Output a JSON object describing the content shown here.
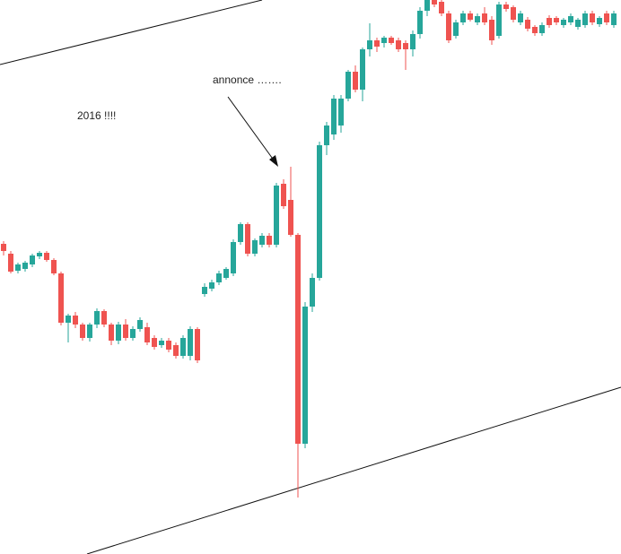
{
  "chart_data": {
    "type": "candlestick",
    "annotations": [
      "2016 !!!!",
      "annonce ……."
    ],
    "up_color": "#26a69a",
    "down_color": "#ef5350",
    "ylim": [
      0,
      618
    ],
    "open": [
      346,
      335,
      316,
      318,
      323,
      332,
      336,
      328,
      313,
      258,
      266,
      256,
      241,
      256,
      271,
      256,
      238,
      256,
      241,
      251,
      253,
      241,
      233,
      238,
      233,
      221,
      221,
      251,
      290,
      296,
      303,
      308,
      313,
      348,
      368,
      335,
      345,
      355,
      345,
      413,
      395,
      356,
      123,
      276,
      308,
      456,
      468,
      478,
      508,
      538,
      518,
      563,
      573,
      570,
      576,
      573,
      570,
      563,
      580,
      606,
      618,
      616,
      603,
      578,
      593,
      603,
      593,
      603,
      596,
      578,
      613,
      610,
      593,
      596,
      588,
      581,
      598,
      598,
      590,
      593,
      588,
      590,
      603,
      591,
      603,
      590
    ],
    "high": [
      349,
      338,
      325,
      327,
      335,
      338,
      338,
      330,
      315,
      268,
      270,
      258,
      258,
      274,
      273,
      258,
      259,
      262,
      254,
      264,
      258,
      244,
      241,
      241,
      236,
      244,
      254,
      253,
      302,
      306,
      316,
      320,
      351,
      370,
      370,
      352,
      358,
      358,
      414,
      418,
      432,
      358,
      281,
      313,
      460,
      482,
      512,
      512,
      540,
      545,
      565,
      592,
      576,
      578,
      578,
      576,
      573,
      584,
      610,
      618,
      618,
      618,
      606,
      596,
      606,
      606,
      603,
      610,
      600,
      616,
      616,
      612,
      606,
      599,
      590,
      593,
      601,
      600,
      598,
      603,
      598,
      606,
      606,
      600,
      606,
      606
    ],
    "low": [
      333,
      313,
      313,
      315,
      320,
      329,
      326,
      311,
      255,
      236,
      252,
      238,
      237,
      252,
      253,
      233,
      234,
      238,
      238,
      248,
      233,
      228,
      230,
      225,
      218,
      218,
      216,
      213,
      287,
      293,
      300,
      306,
      310,
      345,
      332,
      332,
      342,
      342,
      342,
      385,
      354,
      63,
      118,
      270,
      305,
      445,
      462,
      470,
      505,
      515,
      505,
      555,
      560,
      565,
      568,
      560,
      540,
      555,
      575,
      600,
      610,
      600,
      570,
      575,
      590,
      594,
      590,
      590,
      568,
      575,
      605,
      593,
      590,
      583,
      578,
      578,
      587,
      590,
      587,
      590,
      585,
      587,
      590,
      588,
      590,
      587
    ],
    "close": [
      338,
      315,
      323,
      325,
      333,
      336,
      328,
      313,
      258,
      266,
      256,
      241,
      256,
      271,
      256,
      238,
      256,
      241,
      251,
      261,
      236,
      231,
      238,
      228,
      221,
      241,
      251,
      216,
      298,
      303,
      313,
      318,
      348,
      368,
      335,
      350,
      355,
      345,
      411,
      388,
      356,
      123,
      276,
      308,
      456,
      478,
      508,
      508,
      538,
      518,
      563,
      573,
      566,
      576,
      570,
      563,
      563,
      580,
      606,
      618,
      613,
      603,
      573,
      593,
      603,
      596,
      600,
      593,
      573,
      613,
      608,
      596,
      603,
      586,
      581,
      590,
      590,
      593,
      596,
      600,
      596,
      603,
      593,
      598,
      593,
      603
    ]
  }
}
